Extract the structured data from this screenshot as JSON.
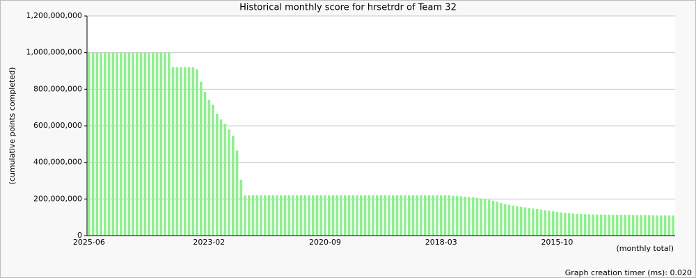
{
  "chart_data": {
    "type": "bar",
    "title": "Historical monthly score for hrsetrdr of Team 32",
    "y_label": "(cumulative points completed)",
    "x_note": "(monthly total)",
    "color": "#90ee90",
    "grid": true,
    "ylim": [
      0,
      1200000000
    ],
    "yticks": [
      0,
      {
        "value": 200000000,
        "label": "200,000,000"
      },
      {
        "value": 400000000,
        "label": "400,000,000"
      },
      {
        "value": 600000000,
        "label": "600,000,000"
      },
      {
        "value": 800000000,
        "label": "800,000,000"
      },
      {
        "value": 1000000000,
        "label": "1,000,000,000"
      },
      {
        "value": 1200000000,
        "label": "1,200,000,000"
      }
    ],
    "categories": [
      "2025-06",
      null,
      null,
      null,
      null,
      null,
      null,
      null,
      null,
      null,
      null,
      null,
      null,
      null,
      null,
      null,
      null,
      null,
      null,
      null,
      null,
      null,
      null,
      null,
      null,
      null,
      null,
      null,
      null,
      null,
      "2023-02",
      null,
      null,
      null,
      null,
      null,
      null,
      null,
      null,
      null,
      null,
      null,
      null,
      null,
      null,
      null,
      null,
      null,
      null,
      null,
      null,
      null,
      null,
      null,
      null,
      null,
      null,
      null,
      null,
      "2020-09",
      null,
      null,
      null,
      null,
      null,
      null,
      null,
      null,
      null,
      null,
      null,
      null,
      null,
      null,
      null,
      null,
      null,
      null,
      null,
      null,
      null,
      null,
      null,
      null,
      null,
      null,
      null,
      null,
      "2018-03",
      null,
      null,
      null,
      null,
      null,
      null,
      null,
      null,
      null,
      null,
      null,
      null,
      null,
      null,
      null,
      null,
      null,
      null,
      null,
      null,
      null,
      null,
      null,
      null,
      null,
      null,
      null,
      null,
      "2015-10",
      null,
      null,
      null,
      null,
      null,
      null,
      null,
      null,
      null,
      null,
      null,
      null,
      null,
      null,
      null,
      null,
      null,
      null,
      null,
      null,
      null,
      null,
      null,
      null,
      null,
      null,
      null,
      null,
      null
    ],
    "values": [
      1000000000,
      1000000000,
      1000000000,
      1000000000,
      1000000000,
      1000000000,
      1000000000,
      1000000000,
      1000000000,
      1000000000,
      1000000000,
      1000000000,
      1000000000,
      1000000000,
      1000000000,
      1000000000,
      1000000000,
      1000000000,
      1000000000,
      1000000000,
      1000000000,
      921000000,
      921000000,
      921000000,
      921000000,
      921000000,
      921000000,
      910000000,
      840000000,
      785000000,
      742000000,
      715000000,
      665000000,
      635000000,
      610000000,
      580000000,
      545000000,
      465000000,
      305000000,
      220000000,
      220000000,
      220000000,
      220000000,
      220000000,
      220000000,
      220000000,
      220000000,
      220000000,
      220000000,
      220000000,
      220000000,
      220000000,
      220000000,
      220000000,
      220000000,
      220000000,
      220000000,
      220000000,
      220000000,
      220000000,
      220000000,
      220000000,
      220000000,
      220000000,
      220000000,
      220000000,
      220000000,
      220000000,
      220000000,
      220000000,
      220000000,
      220000000,
      220000000,
      220000000,
      220000000,
      220000000,
      220000000,
      220000000,
      220000000,
      220000000,
      220000000,
      220000000,
      220000000,
      220000000,
      220000000,
      220000000,
      220000000,
      220000000,
      220000000,
      220000000,
      220000000,
      218000000,
      217000000,
      215000000,
      213000000,
      211000000,
      209000000,
      206000000,
      203000000,
      200000000,
      196000000,
      191000000,
      185000000,
      178000000,
      172000000,
      168000000,
      164000000,
      160000000,
      157000000,
      154000000,
      151000000,
      148000000,
      145000000,
      142000000,
      139000000,
      136000000,
      133000000,
      130000000,
      127000000,
      124000000,
      122000000,
      120000000,
      119000000,
      118000000,
      117000000,
      116000000,
      116000000,
      115000000,
      115000000,
      115000000,
      115000000,
      114000000,
      114000000,
      114000000,
      114000000,
      114000000,
      113000000,
      113000000,
      113000000,
      113000000,
      112000000,
      111000000,
      110000000,
      110000000,
      110000000,
      110000000,
      110000000
    ]
  },
  "footer": "Graph creation timer (ms): 0.020"
}
